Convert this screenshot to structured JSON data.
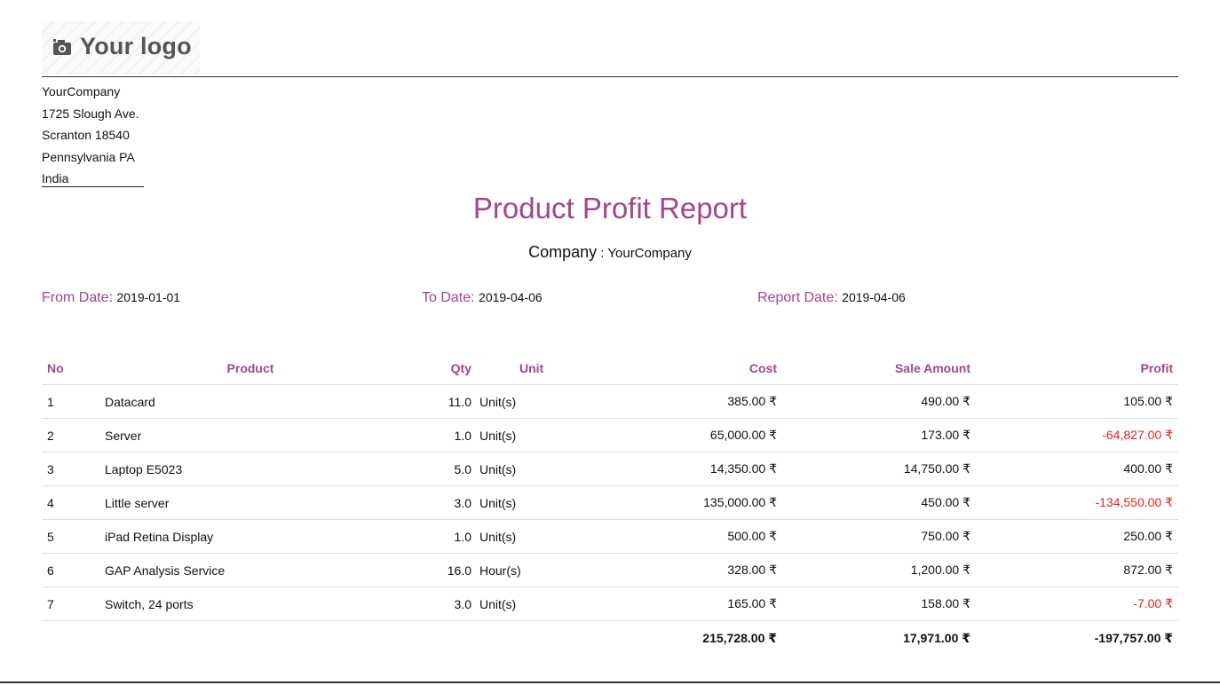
{
  "logo": {
    "text": "Your logo",
    "icon": "camera-icon"
  },
  "company_address": [
    "YourCompany",
    "1725 Slough Ave.",
    "Scranton 18540",
    "Pennsylvania PA",
    "India"
  ],
  "report": {
    "title": "Product Profit Report",
    "company_label": "Company",
    "company_sep": " : ",
    "company_value": "YourCompany",
    "from_label": "From Date:",
    "from_value": "2019-01-01",
    "to_label": "To Date:",
    "to_value": "2019-04-06",
    "report_date_label": "Report Date:",
    "report_date_value": "2019-04-06"
  },
  "table": {
    "headers": {
      "no": "No",
      "product": "Product",
      "qty": "Qty",
      "unit": "Unit",
      "cost": "Cost",
      "sale": "Sale Amount",
      "profit": "Profit"
    },
    "rows": [
      {
        "no": "1",
        "product": "Datacard",
        "qty": "11.0",
        "unit": "Unit(s)",
        "cost": "385.00 ₹",
        "sale": "490.00 ₹",
        "profit": "105.00 ₹",
        "negative": false
      },
      {
        "no": "2",
        "product": "Server",
        "qty": "1.0",
        "unit": "Unit(s)",
        "cost": "65,000.00 ₹",
        "sale": "173.00 ₹",
        "profit": "-64,827.00 ₹",
        "negative": true
      },
      {
        "no": "3",
        "product": "Laptop E5023",
        "qty": "5.0",
        "unit": "Unit(s)",
        "cost": "14,350.00 ₹",
        "sale": "14,750.00 ₹",
        "profit": "400.00 ₹",
        "negative": false
      },
      {
        "no": "4",
        "product": "Little server",
        "qty": "3.0",
        "unit": "Unit(s)",
        "cost": "135,000.00 ₹",
        "sale": "450.00 ₹",
        "profit": "-134,550.00 ₹",
        "negative": true
      },
      {
        "no": "5",
        "product": "iPad Retina Display",
        "qty": "1.0",
        "unit": "Unit(s)",
        "cost": "500.00 ₹",
        "sale": "750.00 ₹",
        "profit": "250.00 ₹",
        "negative": false
      },
      {
        "no": "6",
        "product": "GAP Analysis Service",
        "qty": "16.0",
        "unit": "Hour(s)",
        "cost": "328.00 ₹",
        "sale": "1,200.00 ₹",
        "profit": "872.00 ₹",
        "negative": false
      },
      {
        "no": "7",
        "product": "Switch, 24 ports",
        "qty": "3.0",
        "unit": "Unit(s)",
        "cost": "165.00 ₹",
        "sale": "158.00 ₹",
        "profit": "-7.00 ₹",
        "negative": true
      }
    ],
    "totals": {
      "cost": "215,728.00 ₹",
      "sale": "17,971.00 ₹",
      "profit": "-197,757.00 ₹"
    }
  },
  "colors": {
    "accent": "#a24689",
    "negative": "#e81e1e",
    "text": "#111111"
  }
}
